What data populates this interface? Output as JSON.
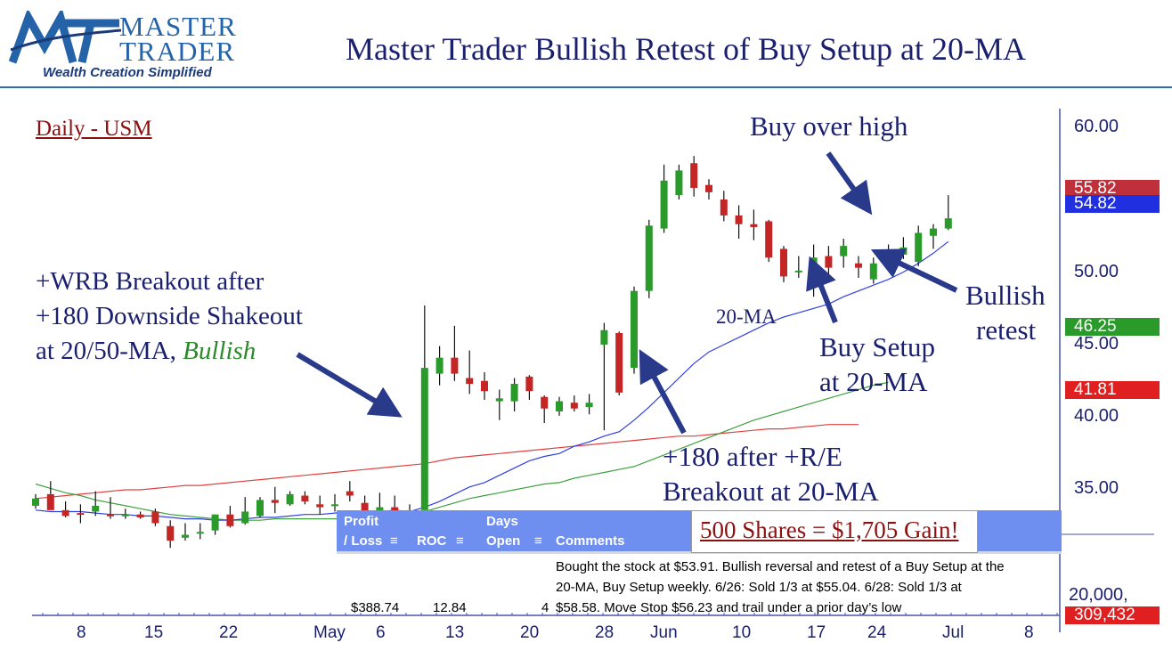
{
  "logo": {
    "word1": "MASTER",
    "word2": "TRADER",
    "tagline": "Wealth Creation Simplified"
  },
  "title": "Master Trader Bullish Retest of Buy Setup at 20-MA",
  "colors": {
    "up": "#2a9a2a",
    "down": "#c42525",
    "ma20": "#3040e0",
    "ma50": "#40a040",
    "ma200": "#e04040",
    "arrow": "#2a3a8a",
    "table_header": "#6f8ff0"
  },
  "annotations": {
    "subtitle": "Daily - USM",
    "wrb_line1": "+WRB Breakout after",
    "wrb_line2": "+180 Downside Shakeout",
    "wrb_line3a": "at 20/50-MA, ",
    "wrb_line3b": "Bullish",
    "buy_over_high": "Buy over high",
    "bullish_retest_1": "Bullish",
    "bullish_retest_2": "retest",
    "buy_setup_1": "Buy Setup",
    "buy_setup_2": "at 20-MA",
    "ma20_label": "20-MA",
    "r180_line1": "+180 after +R/E",
    "r180_line2": "Breakout at 20-MA",
    "gain": "500 Shares = $1,705 Gain!"
  },
  "price_badges": [
    {
      "value": "55.82",
      "color": "#c0303a"
    },
    {
      "value": "54.82",
      "color": "#2030e0"
    },
    {
      "value": "46.25",
      "color": "#2a9a2a"
    },
    {
      "value": "41.81",
      "color": "#e02020"
    },
    {
      "value": "309,432",
      "color": "#e02020"
    }
  ],
  "volume_axis_label": "20,000,",
  "trade_table": {
    "headers": {
      "profit_1": "Profit",
      "profit_2": "/ Loss",
      "roc": "ROC",
      "days_1": "Days",
      "days_2": "Open",
      "comments": "Comments"
    },
    "row": {
      "profit": "$388.74",
      "roc": "12.84",
      "days": "4",
      "comment_1": "Bought the stock at $53.91.  Bullish reversal and retest of a Buy Setup at the",
      "comment_2": "20-MA, Buy Setup weekly.     6/26:  Sold 1/3 at $55.04. 6/28:  Sold 1/3 at",
      "comment_3": "$58.58.  Move Stop $56.23 and trail under a prior day’s low"
    }
  },
  "chart_data": {
    "type": "candlestick",
    "title": "Master Trader Bullish Retest of Buy Setup at 20-MA",
    "subtitle": "Daily - USM",
    "y_axis": {
      "ticks": [
        35.0,
        40.0,
        45.0,
        50.0,
        60.0
      ],
      "tick_labels": [
        "35.00",
        "40.00",
        "45.00",
        "50.00",
        "60.00"
      ],
      "ylim": [
        32.0,
        61.3
      ],
      "side": "right"
    },
    "x_axis": {
      "tick_labels": [
        "8",
        "15",
        "22",
        "May",
        "6",
        "13",
        "20",
        "28",
        "Jun",
        "10",
        "17",
        "24",
        "Jul",
        "8"
      ]
    },
    "candles": [
      {
        "o": 36.2,
        "h": 37.0,
        "l": 36.0,
        "c": 36.7
      },
      {
        "o": 37.0,
        "h": 37.9,
        "l": 36.0,
        "c": 35.9
      },
      {
        "o": 35.9,
        "h": 36.5,
        "l": 35.4,
        "c": 35.5
      },
      {
        "o": 35.7,
        "h": 36.3,
        "l": 35.0,
        "c": 35.6
      },
      {
        "o": 35.8,
        "h": 37.2,
        "l": 35.5,
        "c": 36.2
      },
      {
        "o": 35.6,
        "h": 36.8,
        "l": 35.3,
        "c": 35.5
      },
      {
        "o": 35.5,
        "h": 36.0,
        "l": 35.3,
        "c": 35.6
      },
      {
        "o": 35.6,
        "h": 35.8,
        "l": 35.3,
        "c": 35.4
      },
      {
        "o": 35.8,
        "h": 36.0,
        "l": 34.8,
        "c": 35.0
      },
      {
        "o": 34.8,
        "h": 35.2,
        "l": 33.3,
        "c": 33.8
      },
      {
        "o": 34.0,
        "h": 35.0,
        "l": 33.8,
        "c": 34.2
      },
      {
        "o": 34.3,
        "h": 35.0,
        "l": 33.9,
        "c": 34.4
      },
      {
        "o": 34.5,
        "h": 35.6,
        "l": 34.2,
        "c": 35.6
      },
      {
        "o": 35.6,
        "h": 36.2,
        "l": 34.7,
        "c": 34.8
      },
      {
        "o": 35.0,
        "h": 36.8,
        "l": 34.9,
        "c": 35.8
      },
      {
        "o": 35.5,
        "h": 36.8,
        "l": 35.4,
        "c": 36.6
      },
      {
        "o": 36.6,
        "h": 37.5,
        "l": 35.7,
        "c": 36.4
      },
      {
        "o": 36.3,
        "h": 37.2,
        "l": 36.2,
        "c": 37.0
      },
      {
        "o": 36.9,
        "h": 37.2,
        "l": 36.3,
        "c": 36.5
      },
      {
        "o": 36.3,
        "h": 36.9,
        "l": 35.6,
        "c": 36.1
      },
      {
        "o": 36.2,
        "h": 37.0,
        "l": 35.8,
        "c": 36.3
      },
      {
        "o": 37.2,
        "h": 37.9,
        "l": 36.5,
        "c": 36.9
      },
      {
        "o": 36.4,
        "h": 36.9,
        "l": 33.6,
        "c": 34.0
      },
      {
        "o": 34.2,
        "h": 37.1,
        "l": 34.0,
        "c": 36.1
      },
      {
        "o": 36.1,
        "h": 36.9,
        "l": 35.4,
        "c": 35.6
      },
      {
        "o": 35.5,
        "h": 36.3,
        "l": 35.2,
        "c": 35.8
      },
      {
        "o": 35.9,
        "h": 50.0,
        "l": 35.9,
        "c": 45.7
      },
      {
        "o": 45.3,
        "h": 47.2,
        "l": 44.5,
        "c": 46.4
      },
      {
        "o": 46.4,
        "h": 48.6,
        "l": 44.8,
        "c": 45.3
      },
      {
        "o": 45.0,
        "h": 46.9,
        "l": 43.9,
        "c": 44.6
      },
      {
        "o": 44.8,
        "h": 45.4,
        "l": 43.5,
        "c": 44.1
      },
      {
        "o": 43.4,
        "h": 44.2,
        "l": 42.1,
        "c": 43.6
      },
      {
        "o": 43.4,
        "h": 45.0,
        "l": 42.7,
        "c": 44.6
      },
      {
        "o": 45.1,
        "h": 45.2,
        "l": 43.5,
        "c": 44.1
      },
      {
        "o": 43.7,
        "h": 43.8,
        "l": 41.9,
        "c": 42.9
      },
      {
        "o": 42.7,
        "h": 43.7,
        "l": 42.4,
        "c": 43.4
      },
      {
        "o": 43.3,
        "h": 43.8,
        "l": 42.7,
        "c": 42.9
      },
      {
        "o": 43.0,
        "h": 43.9,
        "l": 42.5,
        "c": 43.3
      },
      {
        "o": 47.3,
        "h": 48.8,
        "l": 41.4,
        "c": 48.3
      },
      {
        "o": 48.1,
        "h": 48.2,
        "l": 43.8,
        "c": 44.0
      },
      {
        "o": 45.7,
        "h": 51.3,
        "l": 45.3,
        "c": 51.0
      },
      {
        "o": 51.0,
        "h": 55.9,
        "l": 50.5,
        "c": 55.5
      },
      {
        "o": 55.3,
        "h": 59.7,
        "l": 55.0,
        "c": 58.6
      },
      {
        "o": 57.6,
        "h": 59.7,
        "l": 57.3,
        "c": 59.3
      },
      {
        "o": 59.8,
        "h": 60.3,
        "l": 57.5,
        "c": 58.1
      },
      {
        "o": 58.3,
        "h": 58.7,
        "l": 57.3,
        "c": 57.8
      },
      {
        "o": 57.3,
        "h": 57.9,
        "l": 55.8,
        "c": 56.2
      },
      {
        "o": 56.2,
        "h": 56.9,
        "l": 54.6,
        "c": 55.6
      },
      {
        "o": 55.6,
        "h": 56.6,
        "l": 54.5,
        "c": 55.4
      },
      {
        "o": 55.8,
        "h": 55.9,
        "l": 53.0,
        "c": 53.3
      },
      {
        "o": 53.9,
        "h": 54.1,
        "l": 51.6,
        "c": 52.0
      },
      {
        "o": 52.3,
        "h": 53.4,
        "l": 51.9,
        "c": 52.4
      },
      {
        "o": 51.8,
        "h": 54.2,
        "l": 50.6,
        "c": 53.3
      },
      {
        "o": 53.4,
        "h": 54.1,
        "l": 51.7,
        "c": 52.6
      },
      {
        "o": 53.4,
        "h": 54.6,
        "l": 52.6,
        "c": 54.1
      },
      {
        "o": 52.9,
        "h": 53.4,
        "l": 51.9,
        "c": 52.6
      },
      {
        "o": 51.8,
        "h": 53.3,
        "l": 51.5,
        "c": 52.9
      },
      {
        "o": 53.3,
        "h": 54.2,
        "l": 52.7,
        "c": 53.6
      },
      {
        "o": 53.5,
        "h": 54.7,
        "l": 53.2,
        "c": 54.0
      },
      {
        "o": 53.0,
        "h": 55.5,
        "l": 52.7,
        "c": 55.0
      },
      {
        "o": 54.8,
        "h": 55.6,
        "l": 53.9,
        "c": 55.3
      },
      {
        "o": 55.3,
        "h": 57.6,
        "l": 55.2,
        "c": 56.0
      }
    ],
    "ma20": [
      35.9,
      35.8,
      35.8,
      35.8,
      35.7,
      35.6,
      35.6,
      35.5,
      35.5,
      35.4,
      35.3,
      35.3,
      35.2,
      35.2,
      35.3,
      35.4,
      35.4,
      35.5,
      35.6,
      35.6,
      35.7,
      35.8,
      35.8,
      35.8,
      35.9,
      35.8,
      36.1,
      36.5,
      37.0,
      37.5,
      37.8,
      38.3,
      38.8,
      39.3,
      39.6,
      39.8,
      40.3,
      40.6,
      41.0,
      41.3,
      42.1,
      43.0,
      44.0,
      45.0,
      46.0,
      46.8,
      47.3,
      47.8,
      48.3,
      48.8,
      49.2,
      49.5,
      49.8,
      50.1,
      50.6,
      51.0,
      51.4,
      51.8,
      52.3,
      52.9,
      53.6,
      54.4
    ],
    "ma50": [
      37.7,
      37.4,
      37.1,
      36.9,
      36.6,
      36.4,
      36.2,
      36.0,
      35.8,
      35.6,
      35.5,
      35.4,
      35.3,
      35.2,
      35.2,
      35.2,
      35.3,
      35.3,
      35.3,
      35.3,
      35.3,
      35.3,
      35.3,
      35.3,
      35.4,
      35.5,
      35.8,
      36.1,
      36.4,
      36.7,
      36.9,
      37.1,
      37.3,
      37.5,
      37.7,
      37.8,
      38.1,
      38.3,
      38.5,
      38.7,
      38.9,
      39.3,
      39.7,
      40.1,
      40.5,
      40.9,
      41.3,
      41.7,
      42.1,
      42.4,
      42.7,
      43.0,
      43.3,
      43.6,
      43.9,
      44.2,
      44.5,
      44.7
    ],
    "ma200": [
      36.7,
      36.8,
      36.9,
      37.0,
      37.1,
      37.2,
      37.3,
      37.3,
      37.4,
      37.5,
      37.6,
      37.6,
      37.7,
      37.8,
      37.9,
      38.0,
      38.1,
      38.2,
      38.3,
      38.4,
      38.5,
      38.6,
      38.7,
      38.8,
      38.9,
      39.0,
      39.1,
      39.3,
      39.5,
      39.6,
      39.7,
      39.8,
      39.9,
      40.0,
      40.1,
      40.2,
      40.3,
      40.4,
      40.5,
      40.6,
      40.7,
      40.8,
      40.9,
      41.0,
      41.0,
      41.1,
      41.2,
      41.3,
      41.4,
      41.5,
      41.5,
      41.6,
      41.7,
      41.8,
      41.8,
      41.8
    ]
  }
}
